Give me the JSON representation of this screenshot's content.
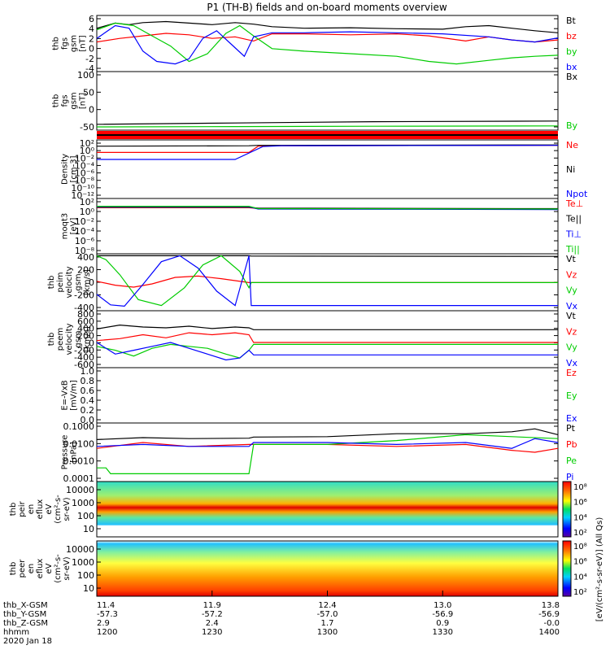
{
  "chart_data": {
    "type": "line",
    "title": "P1 (TH-B) fields and on-board moments overview",
    "panels": [
      {
        "id": "fgs",
        "ylabel": [
          "thb",
          "fgs",
          "gsm",
          "[nT]"
        ],
        "yticks": [
          "6",
          "4",
          "2",
          "0",
          "-2",
          "-4"
        ],
        "ylim": [
          -5,
          6
        ],
        "legend": [
          {
            "label": "Bt",
            "color": "#000000"
          },
          {
            "label": "bz",
            "color": "#ff0000"
          },
          {
            "label": "by",
            "color": "#00cc00"
          },
          {
            "label": "bx",
            "color": "#0000ff"
          }
        ],
        "series": [
          {
            "name": "Bt",
            "x": [
              0,
              0.04,
              0.07,
              0.1,
              0.15,
              0.2,
              0.25,
              0.3,
              0.34,
              0.38,
              0.45,
              0.55,
              0.65,
              0.75,
              0.8,
              0.85,
              0.9,
              0.95,
              1.0
            ],
            "y": [
              3.5,
              4.5,
              4.2,
              4.6,
              4.8,
              4.5,
              4.2,
              4.6,
              4.3,
              3.8,
              3.5,
              3.6,
              3.4,
              3.3,
              3.8,
              4.0,
              3.5,
              3.0,
              2.6
            ]
          },
          {
            "name": "bz",
            "x": [
              0,
              0.05,
              0.1,
              0.15,
              0.2,
              0.25,
              0.3,
              0.34,
              0.38,
              0.45,
              0.55,
              0.65,
              0.72,
              0.8,
              0.85,
              0.9,
              0.95,
              1.0
            ],
            "y": [
              0.8,
              1.5,
              2.0,
              2.5,
              2.2,
              1.5,
              1.8,
              1.0,
              2.4,
              2.4,
              2.2,
              2.4,
              2.0,
              1.0,
              1.8,
              1.2,
              0.8,
              1.2
            ]
          },
          {
            "name": "by",
            "x": [
              0,
              0.04,
              0.08,
              0.12,
              0.16,
              0.2,
              0.24,
              0.28,
              0.31,
              0.34,
              0.38,
              0.45,
              0.55,
              0.65,
              0.72,
              0.78,
              0.85,
              0.9,
              0.95,
              1.0
            ],
            "y": [
              3.2,
              4.5,
              4.0,
              2.0,
              0.0,
              -3.0,
              -1.5,
              2.5,
              4.0,
              2.0,
              -0.5,
              -1.0,
              -1.5,
              -2.0,
              -3.0,
              -3.5,
              -2.8,
              -2.3,
              -2.0,
              -1.8
            ]
          },
          {
            "name": "bx",
            "x": [
              0,
              0.04,
              0.07,
              0.1,
              0.13,
              0.17,
              0.2,
              0.23,
              0.26,
              0.29,
              0.32,
              0.34,
              0.38,
              0.45,
              0.55,
              0.65,
              0.75,
              0.85,
              0.9,
              0.95,
              1.0
            ],
            "y": [
              1.5,
              4.0,
              3.5,
              -1.0,
              -3.0,
              -3.5,
              -2.5,
              1.5,
              3.0,
              0.5,
              -2.0,
              1.8,
              2.6,
              2.6,
              2.8,
              2.6,
              2.4,
              1.8,
              1.2,
              0.8,
              1.6
            ]
          }
        ]
      },
      {
        "id": "fgs_lin",
        "ylabel": [
          "thb",
          "fgs",
          "gsm",
          "[nT]"
        ],
        "yticks": [
          "100",
          "50",
          "0",
          "-50"
        ],
        "ylim": [
          -70,
          110
        ],
        "legend": [
          {
            "label": "Bx",
            "color": "#000000"
          },
          {
            "label": "By",
            "color": "#00cc00"
          }
        ],
        "series": [
          {
            "name": "Bx",
            "x": [
              0,
              0.3,
              0.6,
              1.0
            ],
            "y": [
              -52,
              -48,
              -44,
              -42
            ]
          },
          {
            "name": "By",
            "x": [
              0,
              0.3,
              0.6,
              1.0
            ],
            "y": [
              -60,
              -59,
              -58,
              -57
            ]
          }
        ]
      },
      {
        "id": "density",
        "ylabel": [
          "Density",
          "[cm-3]"
        ],
        "yticks": [
          "10²",
          "10⁰",
          "10⁻²",
          "10⁻⁴",
          "10⁻⁶",
          "10⁻⁸",
          "10⁻¹⁰",
          "10⁻¹²"
        ],
        "ylim": [
          -13,
          2
        ],
        "legend": [
          {
            "label": "Ne",
            "color": "#ff0000"
          },
          {
            "label": "Ni",
            "color": "#000000"
          },
          {
            "label": "Npot",
            "color": "#0000ff"
          }
        ],
        "series": [
          {
            "name": "Ne",
            "x": [
              0,
              0.33,
              0.35,
              0.4,
              1.0
            ],
            "y": [
              -1.2,
              -1.2,
              0.4,
              0.5,
              0.6
            ]
          },
          {
            "name": "Ni",
            "x": [
              0,
              0.33,
              0.35,
              0.4,
              1.0
            ],
            "y": [
              0.4,
              0.5,
              0.6,
              0.6,
              0.7
            ]
          },
          {
            "name": "Npot",
            "x": [
              0,
              0.3,
              0.36,
              0.4,
              1.0
            ],
            "y": [
              -3.0,
              -3.0,
              0.3,
              0.5,
              0.6
            ]
          }
        ]
      },
      {
        "id": "temp",
        "ylabel": [
          "moqt3",
          "[eV]"
        ],
        "yticks": [
          "10²",
          "10⁰",
          "10⁻²",
          "10⁻⁴",
          "10⁻⁶",
          "10⁻⁸"
        ],
        "ylim": [
          -9,
          3
        ],
        "legend": [
          {
            "label": "Te⊥",
            "color": "#ff0000"
          },
          {
            "label": "Te||",
            "color": "#000000"
          },
          {
            "label": "Ti⊥",
            "color": "#0000ff"
          },
          {
            "label": "Ti||",
            "color": "#00cc00"
          }
        ],
        "series": [
          {
            "name": "Te⊥",
            "x": [
              0,
              0.33,
              0.35,
              1.0
            ],
            "y": [
              1.0,
              1.0,
              0.8,
              0.7
            ]
          },
          {
            "name": "Te||",
            "x": [
              0,
              0.33,
              0.35,
              1.0
            ],
            "y": [
              1.1,
              1.1,
              0.9,
              0.8
            ]
          },
          {
            "name": "Ti⊥",
            "x": [
              0,
              0.33,
              0.35,
              1.0
            ],
            "y": [
              1.2,
              1.2,
              0.7,
              0.6
            ]
          },
          {
            "name": "Ti||",
            "x": [
              0,
              0.33,
              0.35,
              1.0
            ],
            "y": [
              1.3,
              1.3,
              0.8,
              0.7
            ]
          }
        ]
      },
      {
        "id": "peim_v",
        "ylabel": [
          "thb",
          "peim",
          "velocity",
          "gsm",
          "[km/s]"
        ],
        "yticks": [
          "400",
          "200",
          "0",
          "-200",
          "-400"
        ],
        "ylim": [
          -450,
          420
        ],
        "legend": [
          {
            "label": "Vt",
            "color": "#000000"
          },
          {
            "label": "Vz",
            "color": "#ff0000"
          },
          {
            "label": "Vy",
            "color": "#00cc00"
          },
          {
            "label": "Vx",
            "color": "#0000ff"
          }
        ],
        "series": [
          {
            "name": "Vt",
            "x": [
              0,
              0.33,
              0.335,
              1.0
            ],
            "y": [
              390,
              390,
              385,
              380
            ]
          },
          {
            "name": "Vz",
            "x": [
              0,
              0.04,
              0.08,
              0.12,
              0.17,
              0.22,
              0.27,
              0.33,
              0.335,
              1.0
            ],
            "y": [
              0,
              -60,
              -90,
              -40,
              60,
              80,
              40,
              -20,
              -20,
              -20
            ]
          },
          {
            "name": "Vy",
            "x": [
              0,
              0.02,
              0.05,
              0.09,
              0.14,
              0.19,
              0.23,
              0.27,
              0.31,
              0.33,
              0.335,
              1.0
            ],
            "y": [
              390,
              330,
              100,
              -280,
              -370,
              -100,
              250,
              390,
              150,
              -100,
              -20,
              -20
            ]
          },
          {
            "name": "Vx",
            "x": [
              0,
              0.03,
              0.06,
              0.1,
              0.14,
              0.18,
              0.22,
              0.26,
              0.3,
              0.33,
              0.335,
              1.0
            ],
            "y": [
              -200,
              -360,
              -380,
              -50,
              300,
              390,
              200,
              -150,
              -370,
              390,
              -370,
              -370
            ]
          }
        ]
      },
      {
        "id": "peem_v",
        "ylabel": [
          "thb",
          "peem",
          "velocity",
          "gsm",
          "[km/s]"
        ],
        "yticks": [
          "800",
          "600",
          "400",
          "200",
          "0",
          "-200",
          "-400",
          "-600"
        ],
        "ylim": [
          -650,
          820
        ],
        "legend": [
          {
            "label": "Vt",
            "color": "#000000"
          },
          {
            "label": "Vz",
            "color": "#ff0000"
          },
          {
            "label": "Vy",
            "color": "#00cc00"
          },
          {
            "label": "Vx",
            "color": "#0000ff"
          }
        ],
        "series": [
          {
            "name": "Vt",
            "x": [
              0,
              0.05,
              0.1,
              0.15,
              0.2,
              0.25,
              0.3,
              0.33,
              0.34,
              1.0
            ],
            "y": [
              350,
              450,
              400,
              380,
              420,
              360,
              400,
              380,
              330,
              330
            ]
          },
          {
            "name": "Vz",
            "x": [
              0,
              0.05,
              0.1,
              0.15,
              0.2,
              0.25,
              0.3,
              0.33,
              0.34,
              1.0
            ],
            "y": [
              50,
              100,
              200,
              120,
              250,
              200,
              250,
              200,
              0,
              0
            ]
          },
          {
            "name": "Vy",
            "x": [
              0,
              0.04,
              0.08,
              0.12,
              0.16,
              0.2,
              0.24,
              0.28,
              0.31,
              0.33,
              0.34,
              1.0
            ],
            "y": [
              -100,
              -200,
              -350,
              -150,
              -50,
              -100,
              -150,
              -300,
              -400,
              -200,
              -50,
              -50
            ]
          },
          {
            "name": "Vx",
            "x": [
              0,
              0.04,
              0.08,
              0.12,
              0.16,
              0.2,
              0.24,
              0.28,
              0.31,
              0.33,
              0.34,
              1.0
            ],
            "y": [
              0,
              -300,
              -200,
              -100,
              0,
              -150,
              -300,
              -450,
              -400,
              -200,
              -320,
              -320
            ]
          }
        ]
      },
      {
        "id": "efield",
        "ylabel": [
          "E=-VxB",
          "[mV/m]"
        ],
        "yticks": [
          "1.0",
          "0.8",
          "0.6",
          "0.4",
          "0.2",
          "0.0"
        ],
        "ylim": [
          0,
          1
        ],
        "legend": [
          {
            "label": "Ez",
            "color": "#ff0000"
          },
          {
            "label": "Ey",
            "color": "#00cc00"
          },
          {
            "label": "Ex",
            "color": "#0000ff"
          }
        ],
        "series": []
      },
      {
        "id": "pressure",
        "ylabel": [
          "Pressure",
          "[nPa]"
        ],
        "yticks": [
          "0.1000",
          "0.0100",
          "0.0010",
          "0.0001"
        ],
        "ylim": [
          -4,
          -1
        ],
        "legend": [
          {
            "label": "Pt",
            "color": "#000000"
          },
          {
            "label": "Pb",
            "color": "#ff0000"
          },
          {
            "label": "Pe",
            "color": "#00cc00"
          },
          {
            "label": "Pi",
            "color": "#0000ff"
          }
        ],
        "series": [
          {
            "name": "Pt",
            "x": [
              0,
              0.1,
              0.2,
              0.33,
              0.34,
              0.5,
              0.65,
              0.8,
              0.9,
              0.95,
              1.0
            ],
            "y": [
              -1.85,
              -1.75,
              -1.8,
              -1.78,
              -1.72,
              -1.7,
              -1.55,
              -1.55,
              -1.45,
              -1.3,
              -1.6
            ]
          },
          {
            "name": "Pb",
            "x": [
              0,
              0.1,
              0.2,
              0.33,
              0.5,
              0.65,
              0.8,
              0.9,
              0.95,
              1.0
            ],
            "y": [
              -2.3,
              -2.0,
              -2.2,
              -2.1,
              -2.1,
              -2.2,
              -2.1,
              -2.4,
              -2.5,
              -2.3
            ]
          },
          {
            "name": "Pe",
            "x": [
              0,
              0.02,
              0.03,
              0.33,
              0.34,
              0.5,
              0.65,
              0.8,
              0.9,
              1.0
            ],
            "y": [
              -3.3,
              -3.3,
              -3.6,
              -3.6,
              -2.1,
              -2.1,
              -1.9,
              -1.6,
              -1.7,
              -1.8
            ]
          },
          {
            "name": "Pi",
            "x": [
              0,
              0.1,
              0.2,
              0.33,
              0.34,
              0.5,
              0.65,
              0.8,
              0.9,
              0.95,
              1.0
            ],
            "y": [
              -2.2,
              -2.1,
              -2.2,
              -2.2,
              -2.0,
              -2.0,
              -2.1,
              -2.0,
              -2.3,
              -1.8,
              -2.0
            ]
          }
        ]
      }
    ],
    "spectrograms": [
      {
        "id": "peir",
        "ylabel": [
          "thb",
          "peir",
          "en",
          "eflux",
          "eV",
          "(cm²-s-",
          "sr-eV)"
        ],
        "yticks": [
          "10000",
          "1000",
          "100",
          "10"
        ],
        "colorbar_ticks": [
          "10⁸",
          "10⁶",
          "10⁴",
          "10²"
        ]
      },
      {
        "id": "peer",
        "ylabel": [
          "thb",
          "peer",
          "en",
          "eflux",
          "eV",
          "(cm²-s-",
          "sr-eV)"
        ],
        "yticks": [
          "10000",
          "1000",
          "100",
          "10"
        ],
        "colorbar_ticks": [
          "10⁸",
          "10⁶",
          "10⁴",
          "10²"
        ]
      }
    ],
    "colorbar_label": "[eV/(cm²-s-sr-eV)] (All Qs)",
    "time_axis": {
      "row_labels": [
        "thb_X-GSM",
        "thb_Y-GSM",
        "thb_Z-GSM",
        "hhmm",
        "2020 Jan 18"
      ],
      "ticks": [
        {
          "x": 0.0,
          "xgsm": "11.4",
          "ygsm": "-57.3",
          "zgsm": "2.9",
          "hhmm": "1200"
        },
        {
          "x": 0.25,
          "xgsm": "11.9",
          "ygsm": "-57.2",
          "zgsm": "2.4",
          "hhmm": "1230"
        },
        {
          "x": 0.5,
          "xgsm": "12.4",
          "ygsm": "-57.0",
          "zgsm": "1.7",
          "hhmm": "1300"
        },
        {
          "x": 0.75,
          "xgsm": "13.0",
          "ygsm": "-56.9",
          "zgsm": "0.9",
          "hhmm": "1330"
        },
        {
          "x": 1.0,
          "xgsm": "13.8",
          "ygsm": "-56.9",
          "zgsm": "-0.0",
          "hhmm": "1400"
        }
      ]
    }
  }
}
